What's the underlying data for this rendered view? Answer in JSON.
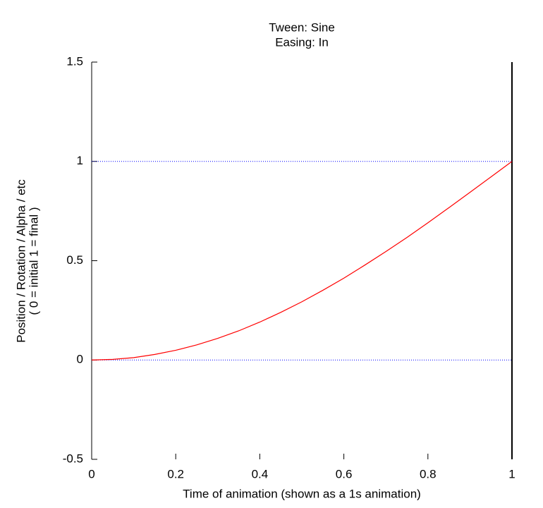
{
  "chart_data": {
    "type": "line",
    "title": [
      "Tween: Sine",
      "Easing: In"
    ],
    "x_label": "Time of animation (shown as a 1s animation)",
    "y_label": [
      "Position / Rotation / Alpha / etc",
      "( 0 = initial   1 = final )"
    ],
    "x": [
      0,
      0.05,
      0.1,
      0.15,
      0.2,
      0.25,
      0.3,
      0.35,
      0.4,
      0.45,
      0.5,
      0.55,
      0.6,
      0.65,
      0.7,
      0.75,
      0.8,
      0.85,
      0.9,
      0.95,
      1
    ],
    "series": [
      {
        "color": "#ff0000",
        "values": [
          0,
          0.003,
          0.012,
          0.028,
          0.049,
          0.076,
          0.109,
          0.147,
          0.191,
          0.24,
          0.293,
          0.351,
          0.412,
          0.478,
          0.546,
          0.617,
          0.691,
          0.767,
          0.844,
          0.922,
          1
        ]
      }
    ],
    "reference_lines": {
      "y": [
        0,
        1
      ],
      "color": "#0000ff"
    },
    "vertical_lines": {
      "x": [
        1
      ],
      "color": "#000000"
    },
    "xlim": [
      0,
      1
    ],
    "xticks": [
      0,
      0.2,
      0.4,
      0.6,
      0.8,
      1
    ],
    "ylim": [
      -0.5,
      1.5
    ],
    "yticks": [
      -0.5,
      0,
      0.5,
      1,
      1.5
    ]
  }
}
